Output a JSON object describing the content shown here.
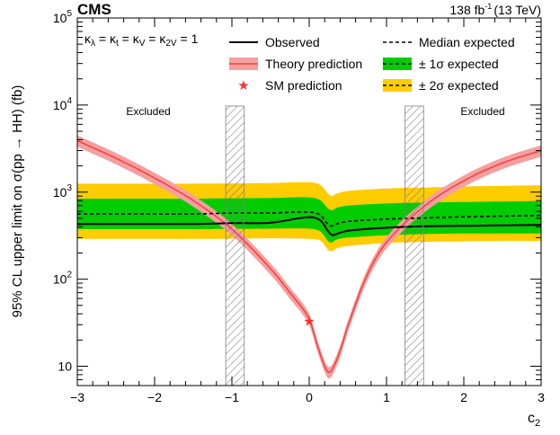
{
  "chart_data": {
    "type": "line",
    "scale": "log-y",
    "experiment": "CMS",
    "luminosity": "138 fb",
    "luminosity_sup": "-1",
    "energy": "(13 TeV)",
    "xlabel": "c",
    "xlabel_sub": "2",
    "ylabel": "95% CL upper limit on σ(pp → HH) (fb)",
    "xlim": [
      -3,
      3
    ],
    "ylim": [
      6,
      100000
    ],
    "x_ticks": [
      -3,
      -2,
      -1,
      0,
      1,
      2,
      3
    ],
    "x_tick_labels": [
      "−3",
      "−2",
      "−1",
      "0",
      "1",
      "2",
      "3"
    ],
    "y_ticks": [
      10,
      100,
      1000,
      10000,
      100000
    ],
    "y_tick_labels": [
      {
        "base": "10",
        "exp": ""
      },
      {
        "base": "10",
        "exp": "2"
      },
      {
        "base": "10",
        "exp": "3"
      },
      {
        "base": "10",
        "exp": "4"
      },
      {
        "base": "10",
        "exp": "5"
      }
    ],
    "couplings_label": "κλ = κt = κV = κ2V = 1",
    "couplings": [
      {
        "sym": "κ",
        "sub": "λ"
      },
      {
        "sym": "κ",
        "sub": "t"
      },
      {
        "sym": "κ",
        "sub": "V"
      },
      {
        "sym": "κ",
        "sub": "2V"
      }
    ],
    "couplings_value": "1",
    "legend": {
      "observed": "Observed",
      "median": "Median expected",
      "theory": "Theory prediction",
      "band1": "± 1σ expected",
      "sm": "SM prediction",
      "band2": "± 2σ expected"
    },
    "annotations": {
      "excluded_left": "Excluded",
      "excluded_right": "Excluded"
    },
    "excluded_regions": [
      [
        -1.08,
        -0.84
      ],
      [
        1.24,
        1.48
      ]
    ],
    "colors": {
      "band1": "#00cc00",
      "band2": "#ffcc00",
      "theory_band": "#f4a0a0",
      "theory_line": "#ff4040",
      "observed": "#000000",
      "median": "#000000",
      "sm_star": "#ff3030",
      "hatch": "#808080"
    },
    "x": [
      -3,
      -2.5,
      -2,
      -1.5,
      -1,
      -0.5,
      0,
      0.15,
      0.25,
      0.3,
      0.35,
      0.5,
      1,
      1.5,
      2,
      2.5,
      3
    ],
    "series": [
      {
        "name": "Observed",
        "values": [
          430,
          430,
          430,
          430,
          440,
          445,
          515,
          470,
          350,
          320,
          330,
          360,
          390,
          405,
          410,
          415,
          420
        ]
      },
      {
        "name": "Median expected",
        "values": [
          560,
          560,
          560,
          560,
          575,
          575,
          590,
          540,
          420,
          410,
          430,
          460,
          490,
          505,
          520,
          530,
          540
        ]
      },
      {
        "name": "± 1σ lower",
        "values": [
          375,
          375,
          375,
          375,
          378,
          380,
          380,
          350,
          270,
          265,
          285,
          300,
          320,
          330,
          335,
          335,
          335
        ]
      },
      {
        "name": "± 1σ upper",
        "values": [
          840,
          840,
          840,
          840,
          850,
          855,
          870,
          800,
          640,
          620,
          660,
          700,
          740,
          760,
          770,
          780,
          790
        ]
      },
      {
        "name": "± 2σ lower",
        "values": [
          290,
          290,
          290,
          290,
          292,
          295,
          290,
          275,
          215,
          210,
          225,
          240,
          260,
          268,
          272,
          275,
          275
        ]
      },
      {
        "name": "± 2σ upper",
        "values": [
          1250,
          1250,
          1250,
          1250,
          1260,
          1270,
          1300,
          1200,
          950,
          900,
          960,
          1030,
          1100,
          1130,
          1160,
          1180,
          1200
        ]
      }
    ],
    "theory_x": [
      -3,
      -2.5,
      -2,
      -1.5,
      -1,
      -0.5,
      -0.25,
      0,
      0.1,
      0.2,
      0.25,
      0.3,
      0.4,
      0.5,
      0.75,
      1,
      1.5,
      2,
      2.5,
      3
    ],
    "theory_values": [
      3900,
      2450,
      1450,
      800,
      375,
      132,
      70,
      35,
      18,
      10,
      8.5,
      9.2,
      15,
      29,
      112,
      265,
      700,
      1350,
      2160,
      3000
    ],
    "theory_band_rel": 0.15,
    "sm_point": {
      "x": 0,
      "y": 33
    }
  }
}
